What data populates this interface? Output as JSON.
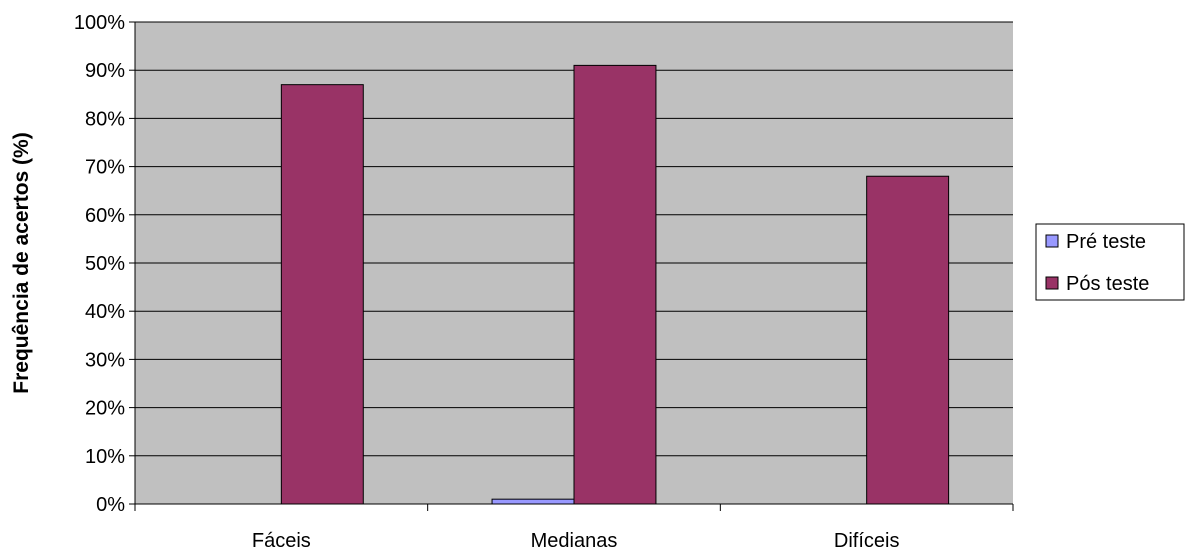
{
  "chart_data": {
    "type": "bar",
    "title": "",
    "xlabel": "",
    "ylabel": "Frequência de acertos (%)",
    "categories": [
      "Fáceis",
      "Medianas",
      "Difíceis"
    ],
    "series": [
      {
        "name": "Pré teste",
        "values": [
          0,
          1,
          0
        ],
        "color": "#9999ff"
      },
      {
        "name": "Pós teste",
        "values": [
          87,
          91,
          68
        ],
        "color": "#993366"
      }
    ],
    "ylim": [
      0,
      100
    ],
    "yticks": [
      "0%",
      "10%",
      "20%",
      "30%",
      "40%",
      "50%",
      "60%",
      "70%",
      "80%",
      "90%",
      "100%"
    ],
    "grid": true,
    "plot_background": "#c0c0c0",
    "legend_position": "right"
  }
}
